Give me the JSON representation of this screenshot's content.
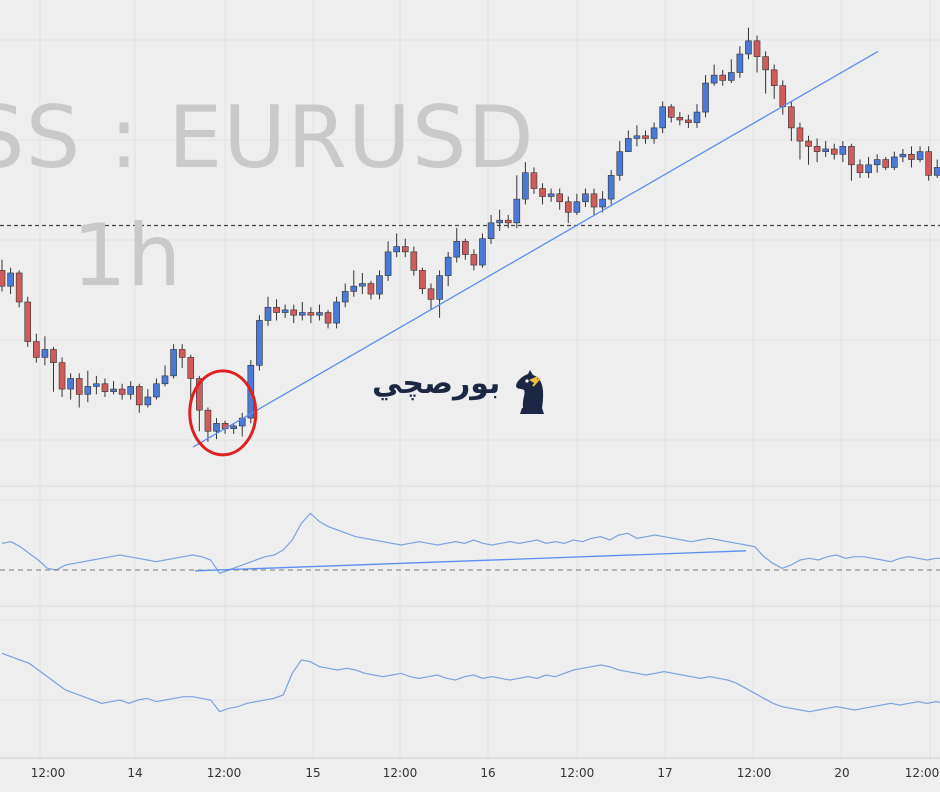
{
  "watermark": {
    "symbol": "SS : EURUSD",
    "interval": "1h"
  },
  "logo": {
    "text": "بورصچي",
    "icon": "chess-knight-icon"
  },
  "colors": {
    "bull": "#4a79d6",
    "bear": "#d05b5b",
    "wick": "#333333",
    "trendline": "#5a8ef0",
    "indicator": "#7aa3de",
    "highlight": "#e02020",
    "grid": "#e2e2e2",
    "background": "#eeeeee"
  },
  "x_axis": {
    "labels": [
      "12:00",
      "14",
      "12:00",
      "15",
      "12:00",
      "16",
      "12:00",
      "17",
      "12:00",
      "20",
      "12:00"
    ]
  },
  "chart_data": [
    {
      "type": "candlestick",
      "symbol": "EURUSD",
      "interval": "1h",
      "values": [
        [
          0.55,
          0.49,
          0.59,
          0.47
        ],
        [
          0.49,
          0.54,
          0.56,
          0.46
        ],
        [
          0.54,
          0.43,
          0.55,
          0.41
        ],
        [
          0.43,
          0.28,
          0.45,
          0.26
        ],
        [
          0.28,
          0.22,
          0.31,
          0.2
        ],
        [
          0.22,
          0.25,
          0.3,
          0.19
        ],
        [
          0.25,
          0.2,
          0.26,
          0.09
        ],
        [
          0.2,
          0.1,
          0.22,
          0.07
        ],
        [
          0.1,
          0.14,
          0.16,
          0.06
        ],
        [
          0.14,
          0.08,
          0.16,
          0.03
        ],
        [
          0.08,
          0.11,
          0.17,
          0.05
        ],
        [
          0.11,
          0.12,
          0.15,
          0.08
        ],
        [
          0.12,
          0.09,
          0.14,
          0.07
        ],
        [
          0.09,
          0.1,
          0.13,
          0.08
        ],
        [
          0.1,
          0.08,
          0.12,
          0.06
        ],
        [
          0.08,
          0.11,
          0.13,
          0.06
        ],
        [
          0.11,
          0.04,
          0.12,
          0.01
        ],
        [
          0.04,
          0.07,
          0.1,
          0.03
        ],
        [
          0.07,
          0.12,
          0.14,
          0.06
        ],
        [
          0.12,
          0.15,
          0.19,
          0.11
        ],
        [
          0.15,
          0.25,
          0.27,
          0.14
        ],
        [
          0.25,
          0.22,
          0.27,
          0.18
        ],
        [
          0.22,
          0.14,
          0.23,
          0.06
        ],
        [
          0.14,
          0.02,
          0.15,
          -0.06
        ],
        [
          0.02,
          -0.06,
          0.03,
          -0.1
        ],
        [
          -0.06,
          -0.03,
          -0.01,
          -0.09
        ],
        [
          -0.03,
          -0.05,
          -0.02,
          -0.07
        ],
        [
          -0.05,
          -0.04,
          -0.03,
          -0.07
        ],
        [
          -0.04,
          -0.01,
          0.01,
          -0.08
        ],
        [
          -0.01,
          0.19,
          0.21,
          -0.03
        ],
        [
          0.19,
          0.36,
          0.38,
          0.17
        ],
        [
          0.36,
          0.41,
          0.45,
          0.34
        ],
        [
          0.41,
          0.39,
          0.44,
          0.36
        ],
        [
          0.39,
          0.4,
          0.42,
          0.37
        ],
        [
          0.4,
          0.38,
          0.42,
          0.35
        ],
        [
          0.38,
          0.39,
          0.43,
          0.36
        ],
        [
          0.39,
          0.38,
          0.41,
          0.35
        ],
        [
          0.38,
          0.39,
          0.42,
          0.36
        ],
        [
          0.39,
          0.35,
          0.4,
          0.33
        ],
        [
          0.35,
          0.43,
          0.45,
          0.33
        ],
        [
          0.43,
          0.47,
          0.5,
          0.41
        ],
        [
          0.47,
          0.49,
          0.55,
          0.45
        ],
        [
          0.49,
          0.5,
          0.54,
          0.46
        ],
        [
          0.5,
          0.46,
          0.51,
          0.44
        ],
        [
          0.46,
          0.53,
          0.55,
          0.44
        ],
        [
          0.53,
          0.62,
          0.66,
          0.51
        ],
        [
          0.62,
          0.64,
          0.69,
          0.6
        ],
        [
          0.64,
          0.62,
          0.67,
          0.6
        ],
        [
          0.62,
          0.55,
          0.64,
          0.53
        ],
        [
          0.55,
          0.48,
          0.56,
          0.46
        ],
        [
          0.48,
          0.44,
          0.5,
          0.4
        ],
        [
          0.44,
          0.53,
          0.55,
          0.37
        ],
        [
          0.53,
          0.6,
          0.62,
          0.49
        ],
        [
          0.6,
          0.66,
          0.71,
          0.58
        ],
        [
          0.66,
          0.61,
          0.67,
          0.59
        ],
        [
          0.61,
          0.57,
          0.63,
          0.55
        ],
        [
          0.57,
          0.67,
          0.69,
          0.56
        ],
        [
          0.67,
          0.73,
          0.76,
          0.65
        ],
        [
          0.73,
          0.74,
          0.78,
          0.7
        ],
        [
          0.74,
          0.73,
          0.76,
          0.71
        ],
        [
          0.73,
          0.82,
          0.91,
          0.71
        ],
        [
          0.82,
          0.92,
          0.96,
          0.8
        ],
        [
          0.92,
          0.86,
          0.94,
          0.84
        ],
        [
          0.86,
          0.83,
          0.88,
          0.8
        ],
        [
          0.83,
          0.84,
          0.86,
          0.81
        ],
        [
          0.84,
          0.81,
          0.86,
          0.78
        ],
        [
          0.81,
          0.77,
          0.83,
          0.73
        ],
        [
          0.77,
          0.81,
          0.84,
          0.76
        ],
        [
          0.81,
          0.84,
          0.86,
          0.79
        ],
        [
          0.84,
          0.79,
          0.86,
          0.76
        ],
        [
          0.79,
          0.82,
          0.85,
          0.77
        ],
        [
          0.82,
          0.91,
          0.93,
          0.8
        ],
        [
          0.91,
          1.0,
          1.04,
          0.89
        ],
        [
          1.0,
          1.05,
          1.08,
          1.0
        ],
        [
          1.05,
          1.06,
          1.1,
          1.02
        ],
        [
          1.06,
          1.05,
          1.08,
          1.03
        ],
        [
          1.05,
          1.09,
          1.11,
          1.03
        ],
        [
          1.09,
          1.17,
          1.19,
          1.07
        ],
        [
          1.17,
          1.13,
          1.18,
          1.11
        ],
        [
          1.13,
          1.12,
          1.15,
          1.1
        ],
        [
          1.12,
          1.11,
          1.14,
          1.09
        ],
        [
          1.11,
          1.15,
          1.18,
          1.09
        ],
        [
          1.15,
          1.26,
          1.29,
          1.13
        ],
        [
          1.26,
          1.29,
          1.33,
          1.25
        ],
        [
          1.29,
          1.27,
          1.31,
          1.25
        ],
        [
          1.27,
          1.3,
          1.35,
          1.26
        ],
        [
          1.3,
          1.37,
          1.4,
          1.28
        ],
        [
          1.37,
          1.42,
          1.47,
          1.35
        ],
        [
          1.42,
          1.36,
          1.44,
          1.3
        ],
        [
          1.36,
          1.31,
          1.38,
          1.22
        ],
        [
          1.31,
          1.25,
          1.33,
          1.2
        ],
        [
          1.25,
          1.17,
          1.27,
          1.14
        ],
        [
          1.17,
          1.09,
          1.19,
          1.04
        ],
        [
          1.09,
          1.04,
          1.11,
          0.97
        ],
        [
          1.04,
          1.02,
          1.06,
          0.95
        ],
        [
          1.02,
          1.0,
          1.05,
          0.96
        ],
        [
          1.0,
          1.01,
          1.04,
          0.98
        ],
        [
          1.01,
          0.99,
          1.03,
          0.97
        ],
        [
          0.99,
          1.02,
          1.04,
          0.96
        ],
        [
          1.02,
          0.95,
          1.03,
          0.89
        ],
        [
          0.95,
          0.92,
          0.97,
          0.9
        ],
        [
          0.92,
          0.95,
          0.98,
          0.9
        ],
        [
          0.95,
          0.97,
          0.99,
          0.92
        ],
        [
          0.97,
          0.94,
          0.98,
          0.93
        ],
        [
          0.94,
          0.98,
          1.0,
          0.93
        ],
        [
          0.98,
          0.99,
          1.01,
          0.96
        ],
        [
          0.99,
          0.97,
          1.02,
          0.94
        ],
        [
          0.97,
          1.0,
          1.02,
          0.96
        ],
        [
          1.0,
          0.91,
          1.02,
          0.89
        ],
        [
          0.91,
          0.94,
          0.97,
          0.9
        ],
        [
          0.94,
          0.89,
          0.96,
          0.87
        ]
      ],
      "reference_line": 0.72,
      "trendline": {
        "from": [
          58,
          -0.12
        ],
        "to": [
          255,
          1.38
        ]
      },
      "highlight_circle_candles": [
        23,
        28
      ]
    },
    {
      "type": "line",
      "name": "indicator-1",
      "values": [
        60,
        61,
        58,
        54,
        50,
        45,
        44,
        47,
        48,
        49,
        50,
        51,
        52,
        53,
        52,
        51,
        50,
        49,
        50,
        51,
        52,
        53,
        52,
        50,
        42,
        44,
        46,
        48,
        50,
        52,
        53,
        56,
        62,
        72,
        78,
        73,
        70,
        68,
        66,
        64,
        63,
        62,
        61,
        60,
        59,
        60,
        61,
        60,
        59,
        60,
        61,
        60,
        62,
        60,
        59,
        60,
        61,
        60,
        61,
        62,
        60,
        61,
        60,
        62,
        61,
        63,
        64,
        62,
        65,
        66,
        63,
        64,
        65,
        64,
        63,
        62,
        61,
        62,
        63,
        62,
        61,
        60,
        59,
        58,
        52,
        48,
        45,
        47,
        50,
        51,
        50,
        52,
        53,
        51,
        52,
        52,
        51,
        50,
        49,
        51,
        52,
        51,
        50,
        51,
        51
      ],
      "reference_line": 44,
      "trendline": {
        "from": [
          57,
          43.5
        ],
        "to": [
          213,
          55.5
        ]
      }
    },
    {
      "type": "line",
      "name": "indicator-2",
      "values": [
        70,
        68,
        66,
        64,
        60,
        56,
        52,
        48,
        46,
        44,
        42,
        40,
        41,
        42,
        40,
        42,
        43,
        41,
        42,
        43,
        44,
        44,
        43,
        42,
        35,
        37,
        38,
        40,
        41,
        42,
        43,
        45,
        58,
        66,
        65,
        62,
        61,
        60,
        61,
        60,
        58,
        57,
        56,
        57,
        58,
        56,
        55,
        56,
        57,
        55,
        54,
        56,
        57,
        55,
        56,
        55,
        54,
        55,
        56,
        55,
        57,
        56,
        58,
        60,
        61,
        62,
        63,
        62,
        60,
        59,
        58,
        57,
        58,
        59,
        58,
        57,
        56,
        55,
        56,
        55,
        54,
        52,
        49,
        46,
        43,
        40,
        38,
        37,
        36,
        35,
        36,
        37,
        38,
        37,
        36,
        37,
        38,
        39,
        40,
        39,
        40,
        41,
        40,
        41,
        40
      ]
    }
  ]
}
